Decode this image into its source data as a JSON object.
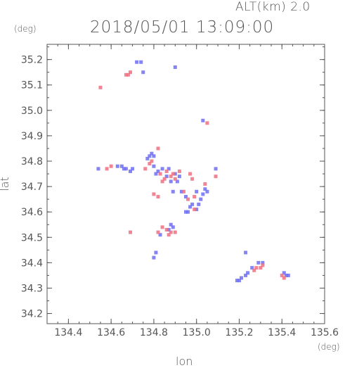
{
  "header": {
    "altitude_label": "ALT(km) 2.0",
    "datetime": "2018/05/01 13:09:00"
  },
  "chart_data": {
    "type": "scatter",
    "title": "2018/05/01 13:09:00",
    "subtitle": "ALT(km) 2.0",
    "xlabel": "lon",
    "ylabel": "lat",
    "x_unit": "(deg)",
    "y_unit": "(deg)",
    "xlim": [
      134.3,
      135.6
    ],
    "ylim": [
      34.16,
      35.26
    ],
    "x_ticks": [
      "134.4",
      "134.6",
      "134.8",
      "135.0",
      "135.2",
      "135.4",
      "135.6"
    ],
    "y_ticks": [
      "34.2",
      "34.3",
      "34.4",
      "34.5",
      "34.6",
      "34.7",
      "34.8",
      "34.9",
      "35.0",
      "35.1",
      "35.2"
    ],
    "grid": false,
    "colors": {
      "positive": "#f07080",
      "negative": "#6f6ff2",
      "axis": "#555555"
    },
    "series": [
      {
        "color": "negative",
        "points": [
          [
            134.72,
            35.19
          ],
          [
            134.74,
            35.19
          ],
          [
            134.75,
            35.15
          ],
          [
            134.9,
            35.17
          ],
          [
            135.03,
            34.96
          ],
          [
            134.54,
            34.77
          ],
          [
            134.63,
            34.78
          ],
          [
            134.65,
            34.78
          ],
          [
            134.66,
            34.77
          ],
          [
            134.67,
            34.77
          ],
          [
            134.69,
            34.76
          ],
          [
            134.7,
            34.77
          ],
          [
            134.77,
            34.81
          ],
          [
            134.78,
            34.82
          ],
          [
            134.79,
            34.83
          ],
          [
            134.8,
            34.78
          ],
          [
            134.8,
            34.82
          ],
          [
            134.81,
            34.75
          ],
          [
            134.82,
            34.76
          ],
          [
            134.84,
            34.77
          ],
          [
            134.86,
            34.74
          ],
          [
            134.87,
            34.77
          ],
          [
            134.88,
            34.72
          ],
          [
            134.89,
            34.68
          ],
          [
            134.9,
            34.75
          ],
          [
            134.91,
            34.72
          ],
          [
            134.92,
            34.74
          ],
          [
            134.93,
            34.68
          ],
          [
            134.95,
            34.66
          ],
          [
            134.97,
            34.62
          ],
          [
            134.98,
            34.63
          ],
          [
            135.0,
            34.61
          ],
          [
            135.01,
            34.63
          ],
          [
            135.02,
            34.65
          ],
          [
            135.03,
            34.67
          ],
          [
            135.04,
            34.69
          ],
          [
            135.05,
            34.68
          ],
          [
            134.96,
            34.6
          ],
          [
            134.95,
            34.6
          ],
          [
            135.0,
            34.68
          ],
          [
            135.09,
            34.77
          ],
          [
            134.87,
            34.53
          ],
          [
            134.88,
            34.55
          ],
          [
            134.89,
            34.54
          ],
          [
            134.83,
            34.51
          ],
          [
            134.81,
            34.44
          ],
          [
            134.8,
            34.42
          ],
          [
            135.19,
            34.33
          ],
          [
            135.2,
            34.33
          ],
          [
            135.21,
            34.34
          ],
          [
            135.23,
            34.35
          ],
          [
            135.24,
            34.36
          ],
          [
            135.26,
            34.38
          ],
          [
            135.29,
            34.4
          ],
          [
            135.31,
            34.4
          ],
          [
            135.23,
            34.44
          ],
          [
            135.41,
            34.36
          ],
          [
            135.42,
            34.35
          ],
          [
            135.43,
            34.35
          ]
        ]
      },
      {
        "color": "positive",
        "points": [
          [
            134.67,
            35.14
          ],
          [
            134.68,
            35.14
          ],
          [
            134.69,
            35.15
          ],
          [
            134.55,
            35.09
          ],
          [
            135.05,
            34.95
          ],
          [
            134.58,
            34.77
          ],
          [
            134.6,
            34.78
          ],
          [
            134.76,
            34.77
          ],
          [
            134.78,
            34.79
          ],
          [
            134.79,
            34.8
          ],
          [
            134.82,
            34.85
          ],
          [
            134.83,
            34.75
          ],
          [
            134.84,
            34.72
          ],
          [
            134.85,
            34.73
          ],
          [
            134.86,
            34.76
          ],
          [
            134.88,
            34.74
          ],
          [
            134.89,
            34.75
          ],
          [
            134.9,
            34.73
          ],
          [
            134.92,
            34.76
          ],
          [
            134.97,
            34.75
          ],
          [
            134.98,
            34.73
          ],
          [
            134.94,
            34.68
          ],
          [
            134.96,
            34.65
          ],
          [
            134.99,
            34.61
          ],
          [
            134.99,
            34.66
          ],
          [
            135.04,
            34.71
          ],
          [
            134.8,
            34.67
          ],
          [
            134.82,
            34.66
          ],
          [
            135.09,
            34.74
          ],
          [
            134.69,
            34.52
          ],
          [
            134.87,
            34.51
          ],
          [
            134.88,
            34.52
          ],
          [
            134.86,
            34.53
          ],
          [
            134.84,
            34.54
          ],
          [
            134.82,
            34.52
          ],
          [
            134.9,
            34.52
          ],
          [
            135.27,
            34.37
          ],
          [
            135.28,
            34.38
          ],
          [
            135.3,
            34.38
          ],
          [
            135.31,
            34.39
          ],
          [
            135.41,
            34.34
          ],
          [
            135.4,
            34.35
          ]
        ]
      }
    ]
  }
}
